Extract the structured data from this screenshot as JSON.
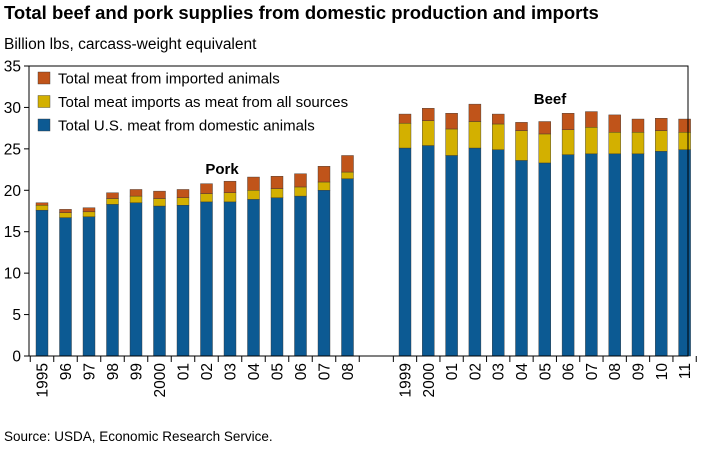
{
  "title": "Total beef and pork supplies from domestic production and imports",
  "subtitle": "Billion lbs, carcass-weight equivalent",
  "source": "Source: USDA, Economic Research Service.",
  "chart_data": {
    "type": "bar",
    "stacked": true,
    "ylim": [
      0,
      35
    ],
    "yticks": [
      0,
      5,
      10,
      15,
      20,
      25,
      30,
      35
    ],
    "grid": false,
    "legend_position": "top-left",
    "colors": {
      "domestic": "#0c5a93",
      "imports_all": "#d3b000",
      "imported_animals": "#c0541a"
    },
    "legend": [
      {
        "key": "imported_animals",
        "label": "Total meat from imported animals"
      },
      {
        "key": "imports_all",
        "label": "Total meat imports as meat from all sources"
      },
      {
        "key": "domestic",
        "label": "Total U.S. meat from domestic animals"
      }
    ],
    "groups": [
      {
        "name": "Pork",
        "categories": [
          "1995",
          "96",
          "97",
          "98",
          "99",
          "2000",
          "01",
          "02",
          "03",
          "04",
          "05",
          "06",
          "07",
          "08"
        ],
        "series": [
          {
            "key": "domestic",
            "values": [
              17.6,
              16.7,
              16.8,
              18.3,
              18.5,
              18.1,
              18.2,
              18.6,
              18.6,
              18.9,
              19.1,
              19.3,
              20.0,
              21.4
            ]
          },
          {
            "key": "imports_all",
            "values": [
              0.6,
              0.6,
              0.6,
              0.7,
              0.8,
              0.9,
              0.9,
              1.0,
              1.1,
              1.1,
              1.1,
              1.1,
              1.0,
              0.8
            ]
          },
          {
            "key": "imported_animals",
            "values": [
              0.3,
              0.4,
              0.5,
              0.7,
              0.8,
              0.9,
              1.0,
              1.2,
              1.4,
              1.6,
              1.5,
              1.6,
              1.9,
              2.0
            ]
          }
        ]
      },
      {
        "name": "Beef",
        "categories": [
          "1999",
          "2000",
          "01",
          "02",
          "03",
          "04",
          "05",
          "06",
          "07",
          "08",
          "09",
          "10",
          "11"
        ],
        "series": [
          {
            "key": "domestic",
            "values": [
              25.1,
              25.4,
              24.2,
              25.1,
              24.9,
              23.6,
              23.3,
              24.3,
              24.4,
              24.4,
              24.4,
              24.7,
              24.9
            ]
          },
          {
            "key": "imports_all",
            "values": [
              3.0,
              3.0,
              3.2,
              3.2,
              3.1,
              3.6,
              3.5,
              3.0,
              3.2,
              2.6,
              2.6,
              2.5,
              2.1
            ]
          },
          {
            "key": "imported_animals",
            "values": [
              1.1,
              1.5,
              1.9,
              2.1,
              1.2,
              1.0,
              1.5,
              2.0,
              1.9,
              2.1,
              1.6,
              1.5,
              1.6
            ]
          }
        ]
      }
    ]
  }
}
